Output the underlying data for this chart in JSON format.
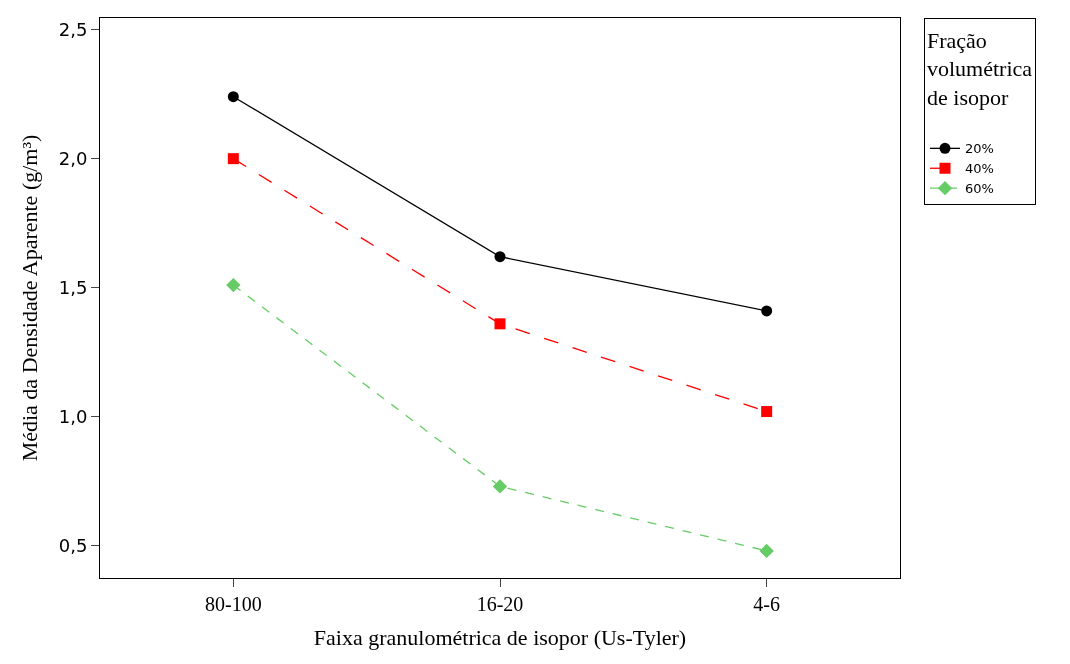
{
  "chart_data": {
    "type": "line",
    "xlabel": "Faixa granulométrica de isopor (Us-Tyler)",
    "ylabel": "Média da Densidade Aparente (g/m³)",
    "legend_title": "Fração volumétrica de isopor",
    "categories": [
      "80-100",
      "16-20",
      "4-6"
    ],
    "series": [
      {
        "name": "20%",
        "color": "#000000",
        "values": [
          2.24,
          1.62,
          1.41
        ],
        "marker": "circle",
        "line_style": "solid"
      },
      {
        "name": "40%",
        "color": "#ff0000",
        "values": [
          2.0,
          1.36,
          1.02
        ],
        "marker": "square",
        "line_style": "dashed"
      },
      {
        "name": "60%",
        "color": "#66cc66",
        "values": [
          1.51,
          0.73,
          0.48
        ],
        "marker": "diamond",
        "line_style": "dotted"
      }
    ],
    "ylim": [
      0.375,
      2.545
    ],
    "yticks": [
      {
        "value": 0.5,
        "label": "0,5"
      },
      {
        "value": 1.0,
        "label": "1,0"
      },
      {
        "value": 1.5,
        "label": "1,5"
      },
      {
        "value": 2.0,
        "label": "2,0"
      },
      {
        "value": 2.5,
        "label": "2,5"
      }
    ],
    "legend": "right"
  }
}
